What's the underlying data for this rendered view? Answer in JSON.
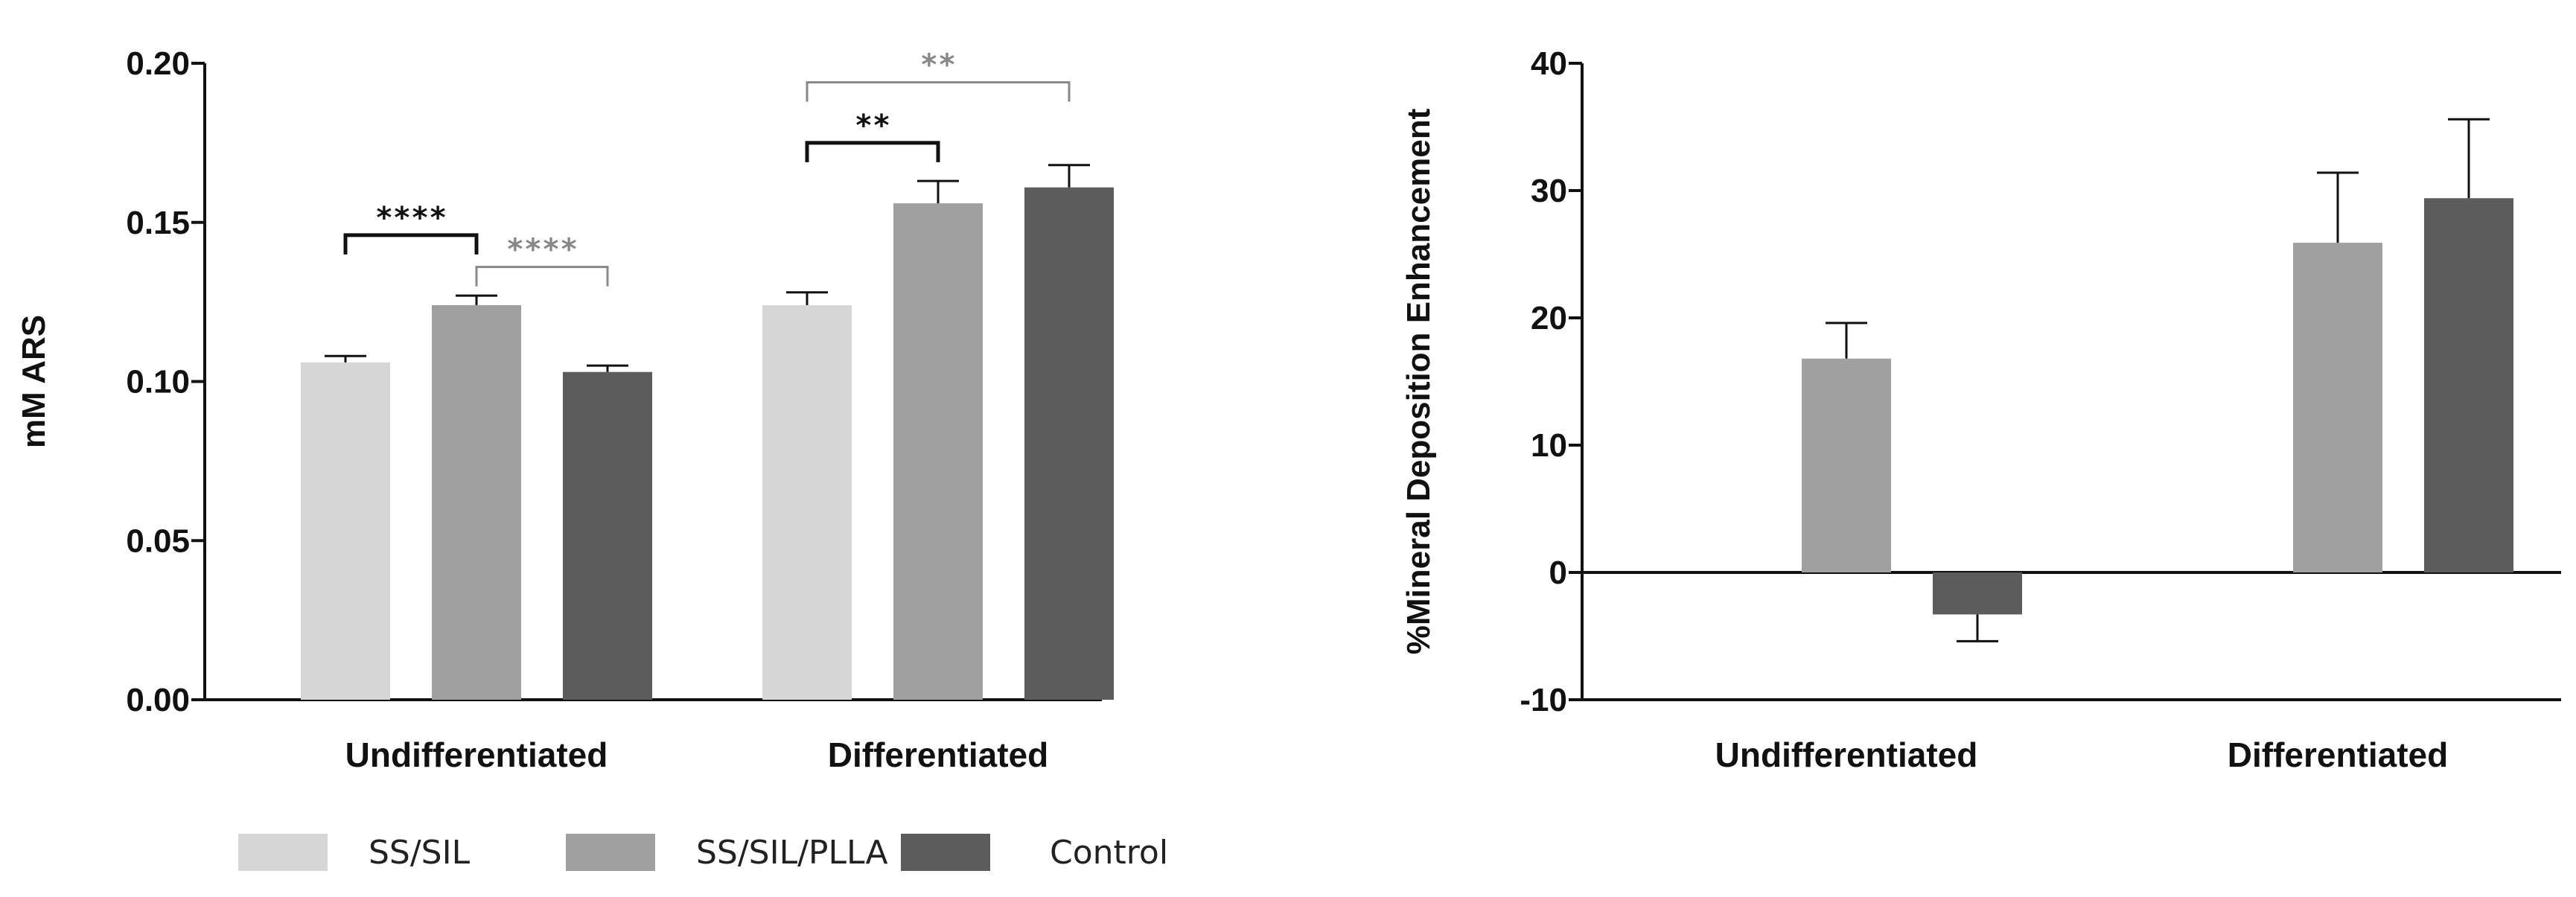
{
  "colors": {
    "SS/SIL": "#d6d6d6",
    "SS/SIL/PLLA": "#a0a0a0",
    "Control": "#5c5c5c",
    "axis": "#111111",
    "sig_dark": "#111111",
    "sig_light": "#888888"
  },
  "legend": [
    "SS/SIL",
    "SS/SIL/PLLA",
    "Control"
  ],
  "chart_data": [
    {
      "type": "bar",
      "categories": [
        "Undifferentiated",
        "Differentiated"
      ],
      "series": [
        {
          "name": "SS/SIL",
          "values": [
            0.106,
            0.124
          ],
          "errors": [
            0.002,
            0.004
          ]
        },
        {
          "name": "SS/SIL/PLLA",
          "values": [
            0.124,
            0.156
          ],
          "errors": [
            0.003,
            0.007
          ]
        },
        {
          "name": "Control",
          "values": [
            0.103,
            0.161
          ],
          "errors": [
            0.002,
            0.007
          ]
        }
      ],
      "ylabel": "mM ARS",
      "xlabel": "",
      "ylim": [
        0,
        0.2
      ],
      "yticks": [
        0.0,
        0.05,
        0.1,
        0.15,
        0.2
      ],
      "ytick_labels": [
        "0.00",
        "0.05",
        "0.10",
        "0.15",
        "0.20"
      ],
      "significance": [
        {
          "category": 0,
          "from": 0,
          "to": 1,
          "label": "****",
          "style": "dark",
          "level": 0.146
        },
        {
          "category": 0,
          "from": 1,
          "to": 2,
          "label": "****",
          "style": "light",
          "level": 0.136
        },
        {
          "category": 1,
          "from": 0,
          "to": 1,
          "label": "**",
          "style": "dark",
          "level": 0.175
        },
        {
          "category": 1,
          "from": 0,
          "to": 2,
          "label": "**",
          "style": "light",
          "level": 0.194
        }
      ]
    },
    {
      "type": "bar",
      "categories": [
        "Undifferentiated",
        "Differentiated"
      ],
      "series": [
        {
          "name": "SS/SIL",
          "values": [
            null,
            null
          ],
          "errors": [
            null,
            null
          ]
        },
        {
          "name": "SS/SIL/PLLA",
          "values": [
            16.8,
            25.9
          ],
          "errors": [
            2.8,
            5.5
          ]
        },
        {
          "name": "Control",
          "values": [
            -3.3,
            29.4
          ],
          "errors": [
            2.1,
            6.2
          ]
        }
      ],
      "ylabel": "%Mineral Deposition Enhancement",
      "xlabel": "",
      "ylim": [
        -10,
        40
      ],
      "yticks": [
        -10,
        0,
        10,
        20,
        30,
        40
      ],
      "ytick_labels": [
        "-10",
        "0",
        "10",
        "20",
        "30",
        "40"
      ],
      "significance": []
    }
  ]
}
